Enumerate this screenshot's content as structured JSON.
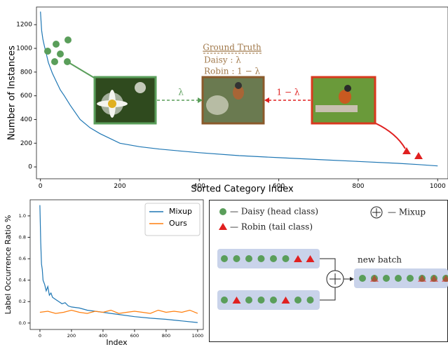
{
  "chart_data": [
    {
      "type": "line",
      "xlabel": "Sorted Category Index",
      "ylabel": "Number of Instances",
      "x": [
        0,
        3,
        6,
        10,
        15,
        20,
        30,
        40,
        50,
        60,
        75,
        100,
        125,
        150,
        200,
        250,
        300,
        350,
        400,
        500,
        600,
        700,
        800,
        900,
        950,
        1000
      ],
      "values": [
        1310,
        1150,
        1080,
        1020,
        950,
        880,
        790,
        720,
        650,
        600,
        520,
        400,
        330,
        280,
        200,
        170,
        150,
        135,
        120,
        95,
        78,
        62,
        46,
        30,
        20,
        8
      ],
      "color": "#1f77b4",
      "xlim": [
        -10,
        1026
      ],
      "ylim": [
        -100,
        1349
      ],
      "xticks": [
        0,
        200,
        400,
        600,
        800,
        1000
      ],
      "yticks": [
        0,
        200,
        400,
        600,
        800,
        1000,
        1200
      ],
      "annotations": [
        "Ground Truth",
        "Daisy :   λ",
        "Robin : 1 − λ",
        "λ",
        "1 − λ"
      ]
    },
    {
      "type": "line",
      "xlabel": "Index",
      "ylabel": "Label Occurrence Ratio %",
      "series": [
        {
          "name": "Mixup",
          "color": "#1f77b4",
          "x": [
            0,
            5,
            10,
            15,
            20,
            30,
            40,
            50,
            60,
            70,
            80,
            100,
            120,
            140,
            160,
            180,
            200,
            250,
            300,
            350,
            400,
            450,
            500,
            600,
            700,
            800,
            900,
            1000
          ],
          "values": [
            1.1,
            0.75,
            0.55,
            0.5,
            0.4,
            0.36,
            0.3,
            0.34,
            0.26,
            0.28,
            0.24,
            0.22,
            0.2,
            0.18,
            0.19,
            0.16,
            0.15,
            0.14,
            0.12,
            0.11,
            0.1,
            0.09,
            0.08,
            0.06,
            0.045,
            0.035,
            0.02,
            0.005
          ]
        },
        {
          "name": "Ours",
          "color": "#ff7f0e",
          "x": [
            0,
            50,
            100,
            150,
            200,
            250,
            300,
            350,
            400,
            450,
            500,
            550,
            600,
            650,
            700,
            750,
            800,
            850,
            900,
            950,
            1000
          ],
          "values": [
            0.1,
            0.11,
            0.09,
            0.1,
            0.12,
            0.1,
            0.09,
            0.11,
            0.1,
            0.12,
            0.09,
            0.1,
            0.11,
            0.1,
            0.09,
            0.12,
            0.1,
            0.11,
            0.1,
            0.12,
            0.09
          ]
        }
      ],
      "xlim": [
        -62,
        1036
      ],
      "ylim": [
        -0.06,
        1.15
      ],
      "xticks": [
        0,
        200,
        400,
        600,
        800,
        1000
      ],
      "yticks": [
        {
          "value": 0,
          "label": "0.0"
        },
        0.2,
        0.4,
        0.6,
        0.8,
        {
          "value": 1,
          "label": "1.0"
        }
      ],
      "legend": "upper right"
    }
  ],
  "diagram": {
    "legend": [
      "— Daisy (head class)",
      "— Robin (tail class)",
      "— Mixup"
    ],
    "new_batch_label": "new batch"
  }
}
